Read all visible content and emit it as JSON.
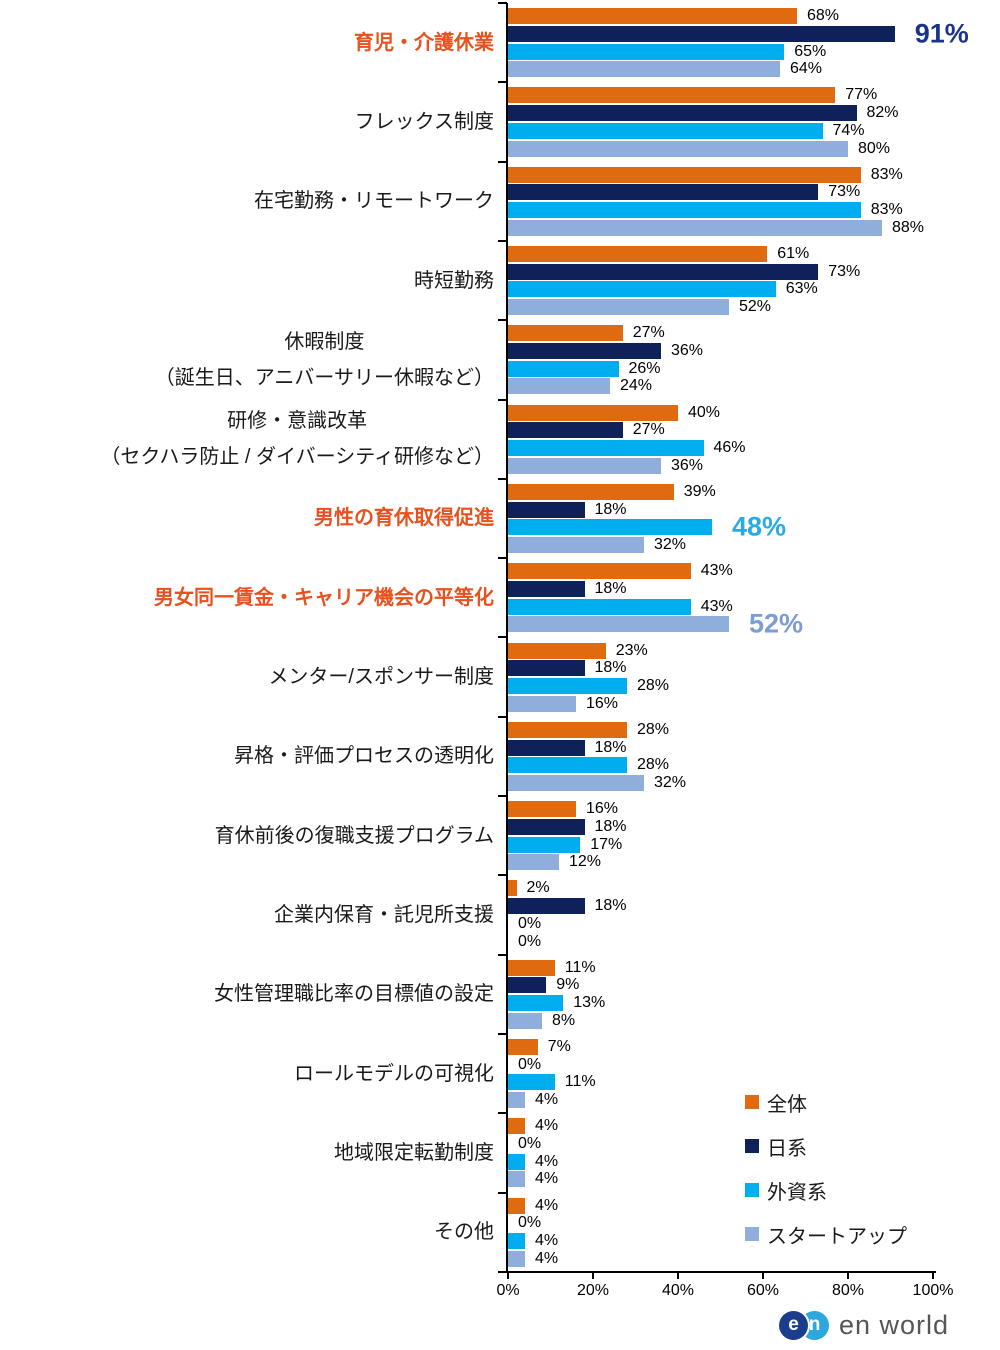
{
  "chart_data": {
    "type": "bar",
    "orientation": "horizontal",
    "title": "",
    "grid": false,
    "legend_position": "inside-bottom-right",
    "x_axis": {
      "min": 0,
      "max": 100,
      "ticks": [
        "0%",
        "20%",
        "40%",
        "60%",
        "80%",
        "100%"
      ]
    },
    "value_label_suffix": "%",
    "series": [
      {
        "name": "全体",
        "color": "#E06A10"
      },
      {
        "name": "日系",
        "color": "#0E2259"
      },
      {
        "name": "外資系",
        "color": "#00AEEF"
      },
      {
        "name": "スタートアップ",
        "color": "#8FAEDC"
      }
    ],
    "emphasis_text_colors": {
      "1": "#1B3489",
      "2": "#29ABE2",
      "3": "#7B9CD6"
    },
    "categories": [
      {
        "lines": [
          "育児・介護休業"
        ],
        "highlight": true,
        "values": [
          68,
          91,
          65,
          64
        ],
        "emphasis_series": 1
      },
      {
        "lines": [
          "フレックス制度"
        ],
        "highlight": false,
        "values": [
          77,
          82,
          74,
          80
        ],
        "emphasis_series": null
      },
      {
        "lines": [
          "在宅勤務・リモートワーク"
        ],
        "highlight": false,
        "values": [
          83,
          73,
          83,
          88
        ],
        "emphasis_series": null
      },
      {
        "lines": [
          "時短勤務"
        ],
        "highlight": false,
        "values": [
          61,
          73,
          63,
          52
        ],
        "emphasis_series": null
      },
      {
        "lines": [
          "休暇制度",
          "（誕生日、アニバーサリー休暇など）"
        ],
        "highlight": false,
        "values": [
          27,
          36,
          26,
          24
        ],
        "emphasis_series": null
      },
      {
        "lines": [
          "研修・意識改革",
          "（セクハラ防止 / ダイバーシティ研修など）"
        ],
        "highlight": false,
        "values": [
          40,
          27,
          46,
          36
        ],
        "emphasis_series": null
      },
      {
        "lines": [
          "男性の育休取得促進"
        ],
        "highlight": true,
        "values": [
          39,
          18,
          48,
          32
        ],
        "emphasis_series": 2
      },
      {
        "lines": [
          "男女同一賃金・キャリア機会の平等化"
        ],
        "highlight": true,
        "values": [
          43,
          18,
          43,
          52
        ],
        "emphasis_series": 3
      },
      {
        "lines": [
          "メンター/スポンサー制度"
        ],
        "highlight": false,
        "values": [
          23,
          18,
          28,
          16
        ],
        "emphasis_series": null
      },
      {
        "lines": [
          "昇格・評価プロセスの透明化"
        ],
        "highlight": false,
        "values": [
          28,
          18,
          28,
          32
        ],
        "emphasis_series": null
      },
      {
        "lines": [
          "育休前後の復職支援プログラム"
        ],
        "highlight": false,
        "values": [
          16,
          18,
          17,
          12
        ],
        "emphasis_series": null
      },
      {
        "lines": [
          "企業内保育・託児所支援"
        ],
        "highlight": false,
        "values": [
          2,
          18,
          0,
          0
        ],
        "emphasis_series": null
      },
      {
        "lines": [
          "女性管理職比率の目標値の設定"
        ],
        "highlight": false,
        "values": [
          11,
          9,
          13,
          8
        ],
        "emphasis_series": null
      },
      {
        "lines": [
          "ロールモデルの可視化"
        ],
        "highlight": false,
        "values": [
          7,
          0,
          11,
          4
        ],
        "emphasis_series": null
      },
      {
        "lines": [
          "地域限定転勤制度"
        ],
        "highlight": false,
        "values": [
          4,
          0,
          4,
          4
        ],
        "emphasis_series": null
      },
      {
        "lines": [
          "その他"
        ],
        "highlight": false,
        "values": [
          4,
          0,
          4,
          4
        ],
        "emphasis_series": null
      }
    ]
  },
  "colors": {
    "highlight_label": "#E8511E",
    "axis": "#000000",
    "value_label": "#000000"
  },
  "footer": {
    "logo_letter_e": "e",
    "logo_letter_n": "n",
    "logo_text": "en world"
  }
}
